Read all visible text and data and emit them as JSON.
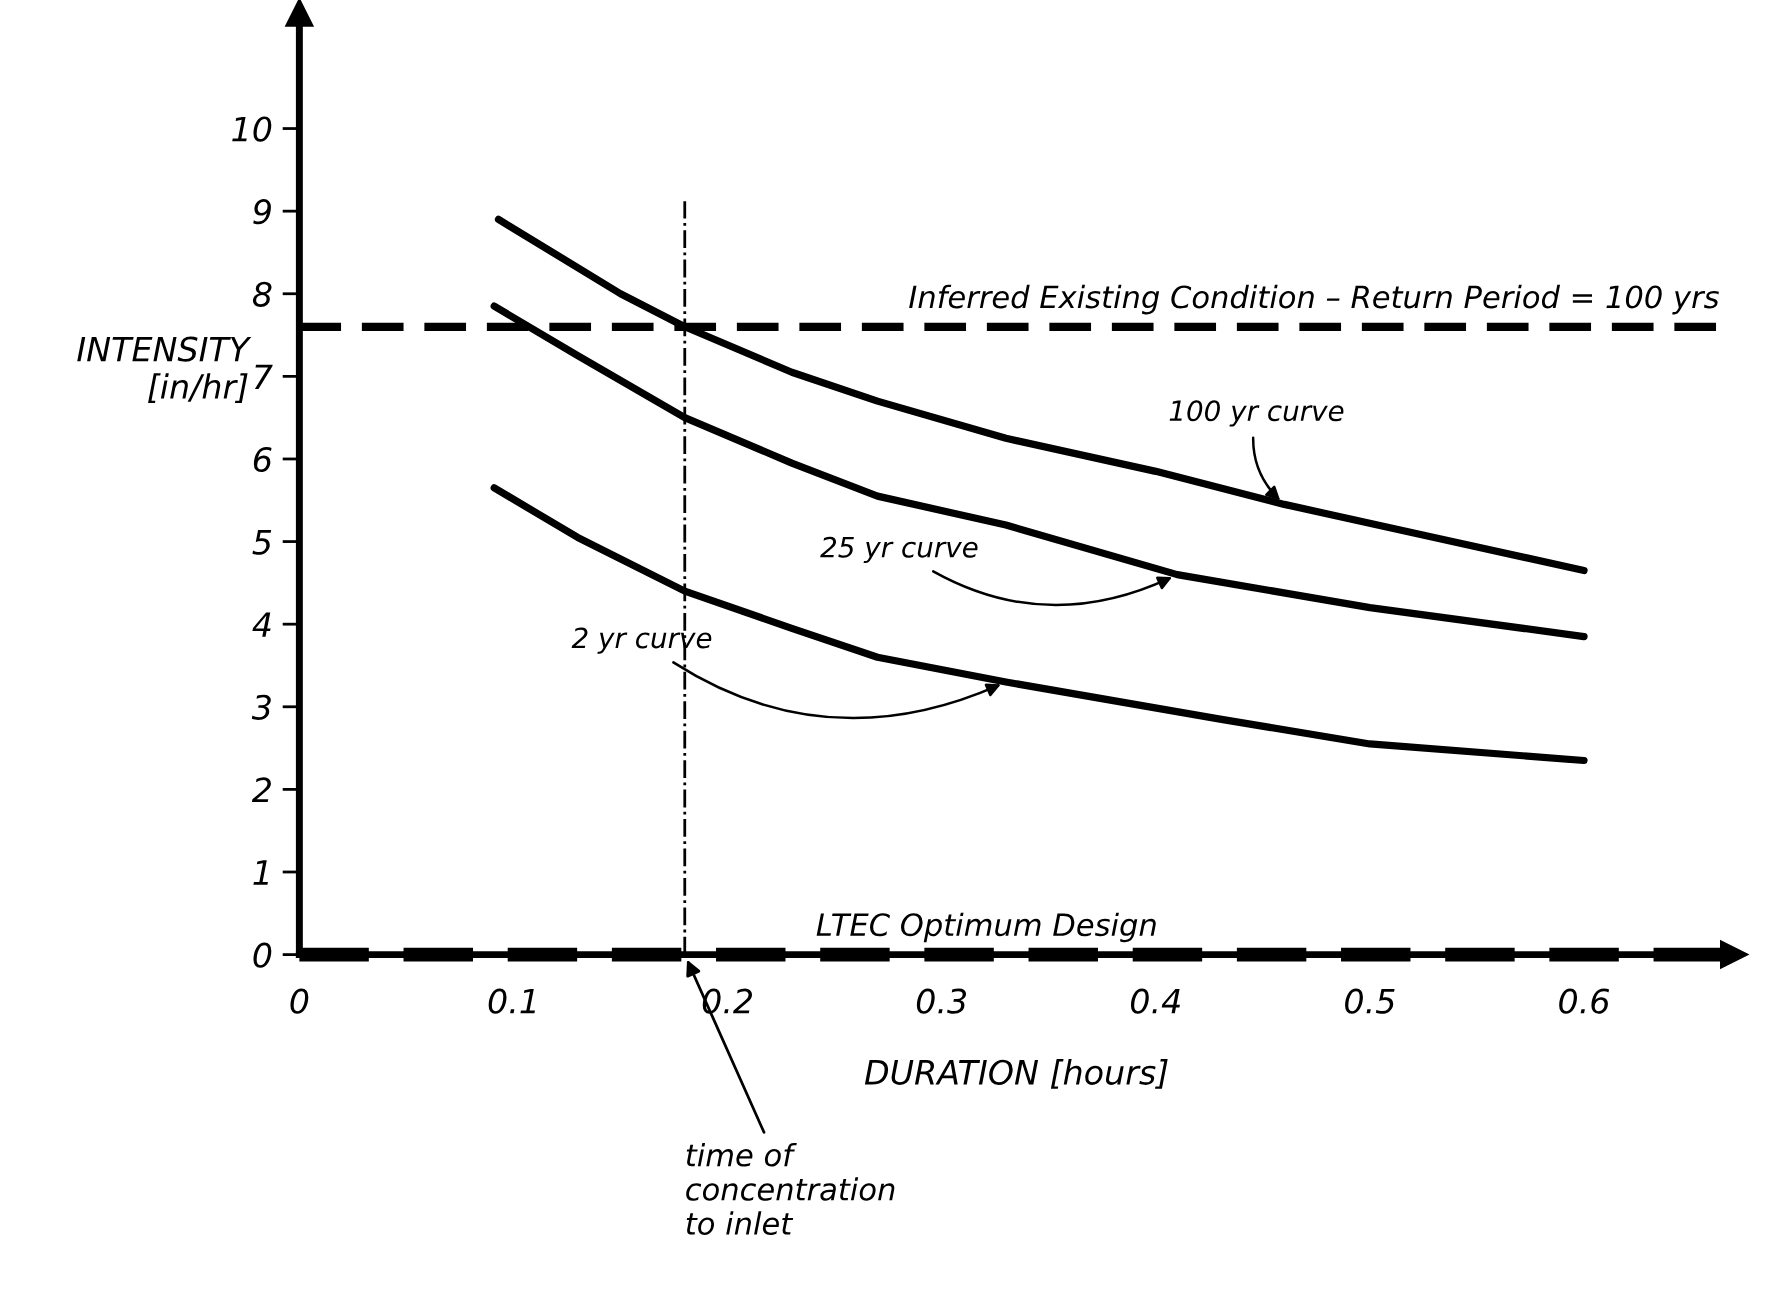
{
  "chart_data": {
    "type": "line",
    "xlabel": "DURATION [hours]",
    "ylabel": "INTENSITY\n[in/hr]",
    "xlim": [
      0,
      0.67
    ],
    "ylim": [
      0,
      11.4
    ],
    "xticks": [
      0,
      0.1,
      0.2,
      0.3,
      0.4,
      0.5,
      0.6
    ],
    "yticks": [
      0,
      1,
      2,
      3,
      4,
      5,
      6,
      7,
      8,
      9,
      10
    ],
    "series": [
      {
        "name": "100 yr curve",
        "color": "#000000",
        "x": [
          0.093,
          0.15,
          0.18,
          0.23,
          0.27,
          0.33,
          0.4,
          0.46,
          0.53,
          0.6
        ],
        "values": [
          8.9,
          8.0,
          7.6,
          7.05,
          6.7,
          6.25,
          5.85,
          5.45,
          5.05,
          4.65
        ]
      },
      {
        "name": "25 yr curve",
        "color": "#000000",
        "x": [
          0.091,
          0.13,
          0.18,
          0.23,
          0.27,
          0.33,
          0.41,
          0.5,
          0.6
        ],
        "values": [
          7.85,
          7.25,
          6.5,
          5.95,
          5.55,
          5.2,
          4.6,
          4.2,
          3.85
        ]
      },
      {
        "name": "2 yr curve",
        "color": "#000000",
        "x": [
          0.091,
          0.13,
          0.18,
          0.23,
          0.27,
          0.33,
          0.43,
          0.5,
          0.6
        ],
        "values": [
          5.65,
          5.05,
          4.4,
          3.95,
          3.6,
          3.3,
          2.85,
          2.55,
          2.35
        ]
      }
    ],
    "ref_lines": [
      {
        "axis": "y",
        "value": 7.6,
        "color": "#000000",
        "line_style": "dashed"
      },
      {
        "axis": "y",
        "value": 0,
        "label": "LTEC Optimum Design",
        "color": "#000000",
        "line_style": "dashed"
      },
      {
        "axis": "x",
        "value": 0.18,
        "label": "time of\nconcentration\nto inlet",
        "color": "#000000",
        "line_style": "dashdot"
      }
    ],
    "annotations": [
      "Inferred Existing Condition – Return Period = 100 yrs"
    ],
    "grid": false,
    "legend": false,
    "marker": "none",
    "line_style": "solid"
  }
}
